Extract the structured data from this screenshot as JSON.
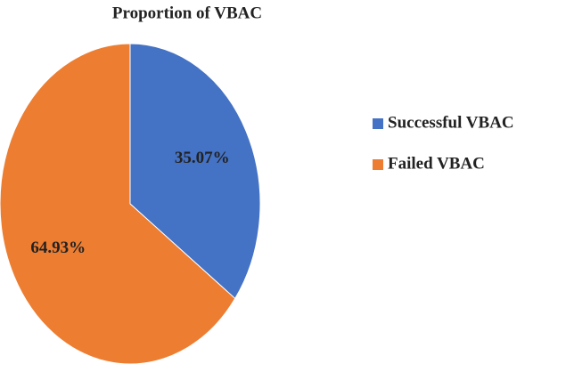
{
  "chart_data": {
    "type": "pie",
    "title": "Proportion of VBAC",
    "categories": [
      "Successful VBAC",
      "Failed VBAC"
    ],
    "values": [
      35.07,
      64.93
    ],
    "value_labels": [
      "35.07%",
      "64.93%"
    ],
    "colors": [
      "#4472c4",
      "#ed7d31"
    ],
    "legend": "right"
  }
}
